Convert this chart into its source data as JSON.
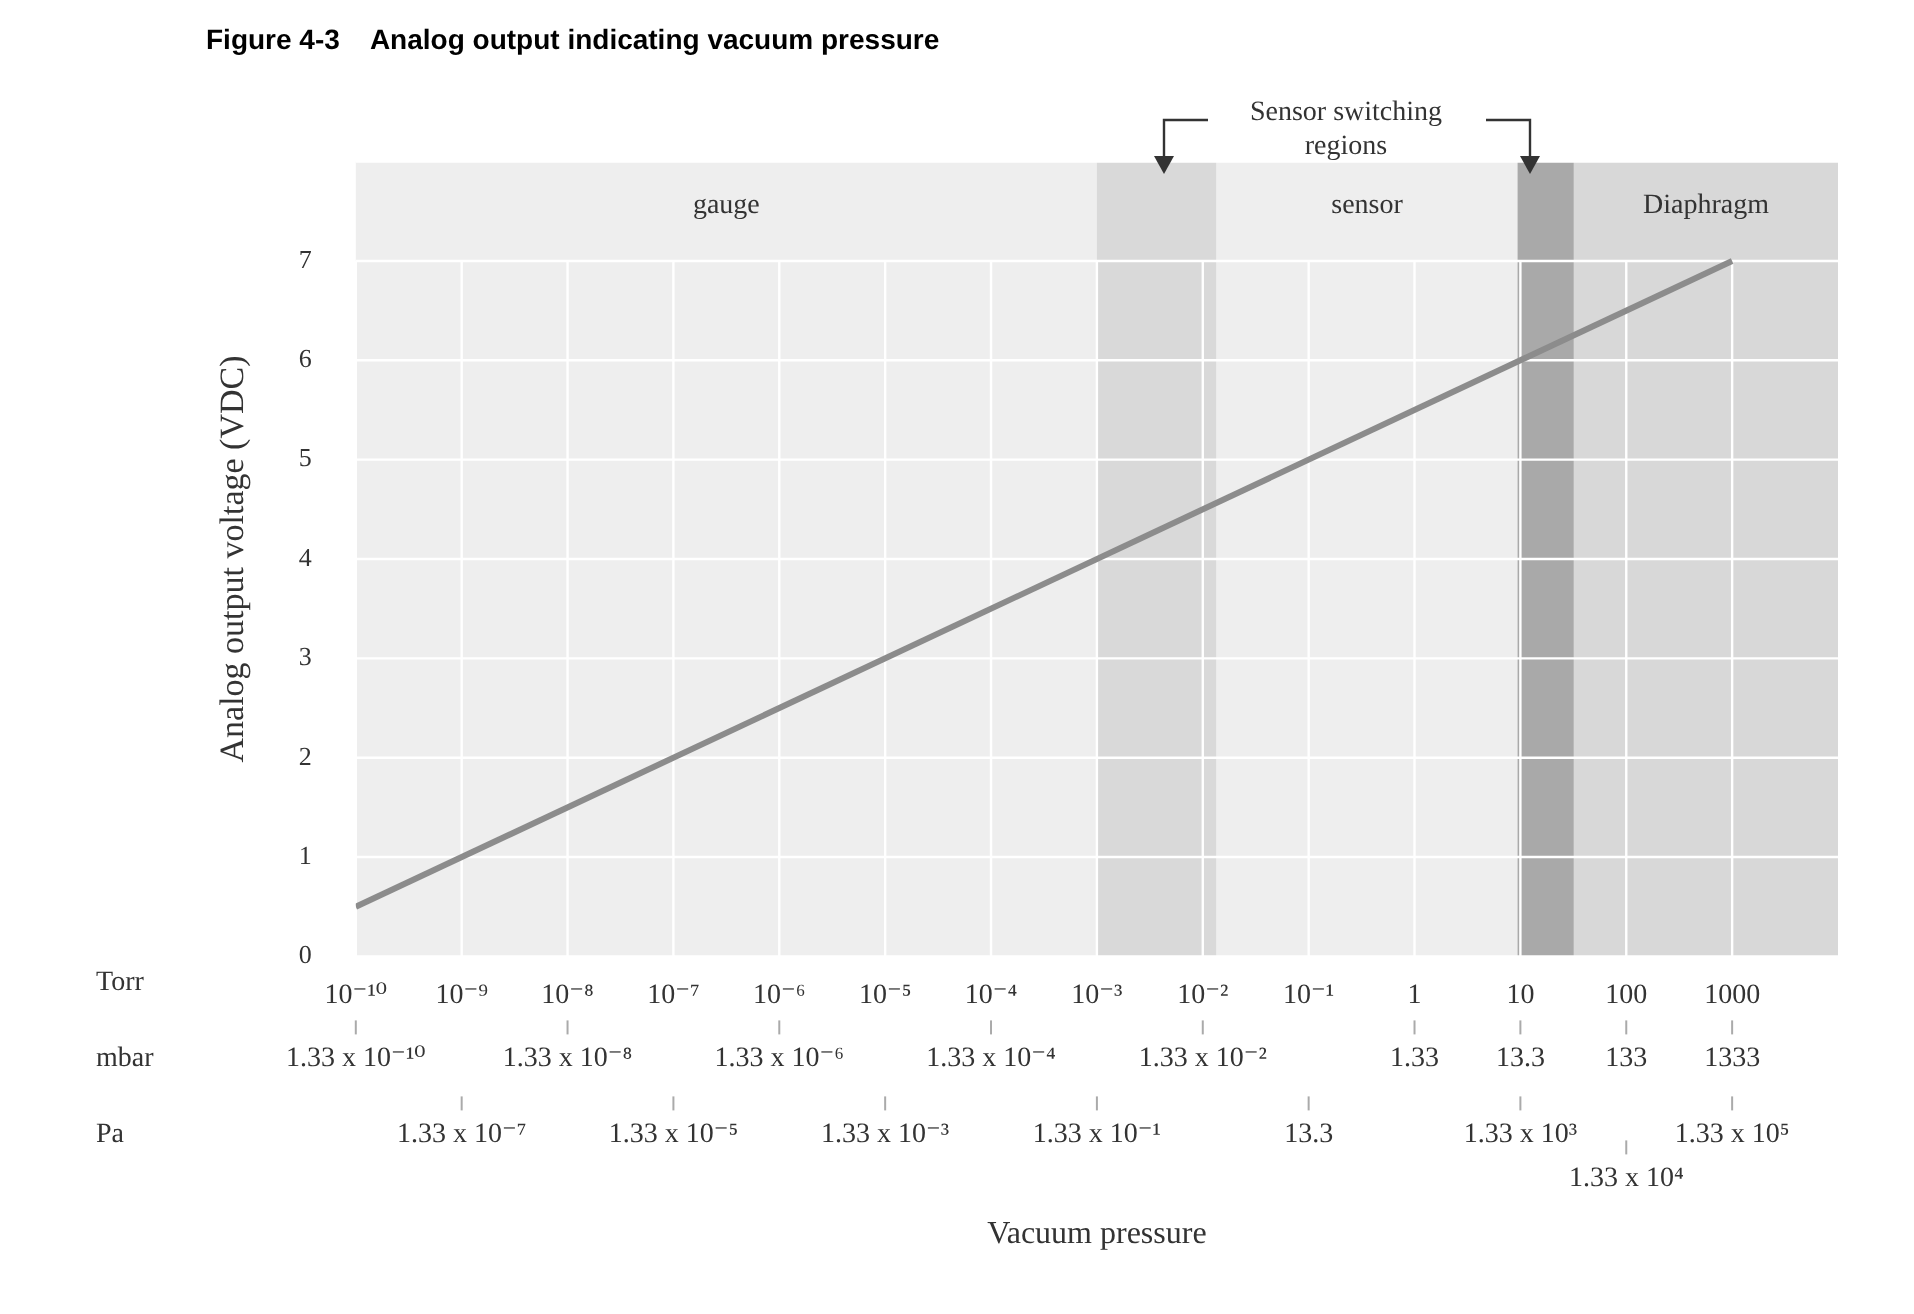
{
  "chart_data": {
    "type": "line",
    "title": "Figure 4-3    Analog output indicating vacuum pressure",
    "ylabel": "Analog output voltage (VDC)",
    "log": "x",
    "grid": true,
    "legend": false,
    "marker": "none",
    "line_style": "solid",
    "xlim": [
      1e-10,
      10000
    ],
    "xticks": [
      {
        "value": 1e-10,
        "label": "10⁻¹⁰"
      },
      {
        "value": 1e-09,
        "label": "10⁻⁹"
      },
      {
        "value": 1e-08,
        "label": "10⁻⁸"
      },
      {
        "value": 1e-07,
        "label": "10⁻⁷"
      },
      {
        "value": 1e-06,
        "label": "10⁻⁶"
      },
      {
        "value": 1e-05,
        "label": "10⁻⁵"
      },
      {
        "value": 0.0001,
        "label": "10⁻⁴"
      },
      {
        "value": 0.001,
        "label": "10⁻³"
      },
      {
        "value": 0.01,
        "label": "10⁻²"
      },
      {
        "value": 0.1,
        "label": "10⁻¹"
      },
      1,
      10,
      100,
      1000
    ],
    "ylim": [
      0,
      8
    ],
    "yticks": [
      0,
      1,
      2,
      3,
      4,
      5,
      6,
      7,
      {
        "value": 8,
        "label": null
      }
    ],
    "series": [
      {
        "color": "#8c8c8c",
        "x": [
          1e-10,
          1000
        ],
        "values": [
          0.5,
          7
        ]
      }
    ],
    "bands": [
      {
        "axis": "x",
        "from": 1e-10,
        "to": 0.001,
        "label": "gauge",
        "color": "#eeeeee"
      },
      {
        "axis": "x",
        "from": 0.001,
        "to": 0.0135,
        "label": null,
        "color": "#d9d9d9"
      },
      {
        "axis": "x",
        "from": 0.0135,
        "to": 9.4,
        "label": "sensor",
        "color": "#eeeeee"
      },
      {
        "axis": "x",
        "from": 9.4,
        "to": 32,
        "label": null,
        "color": "#a9a9a9"
      },
      {
        "axis": "x",
        "from": 32,
        "to": 10000,
        "label": "Diaphragm",
        "color": "#d8d8d8"
      }
    ],
    "annotations": [
      "Sensor switching regions",
      "Vacuum pressure",
      "Torr",
      "mbar",
      "1.33 x 10⁻¹⁰",
      "1.33 x 10⁻⁸",
      "1.33 x 10⁻⁶",
      "1.33 x 10⁻⁴",
      "1.33 x 10⁻²",
      "1.33",
      "13.3",
      "133",
      "1333",
      "Pa",
      "1.33 x 10⁻⁷",
      "1.33 x 10⁻⁵",
      "1.33 x 10⁻³",
      "1.33 x 10⁻¹",
      "13.3",
      "1.33 x 10³",
      "1.33 x 10⁴",
      "1.33 x 10⁵"
    ]
  }
}
